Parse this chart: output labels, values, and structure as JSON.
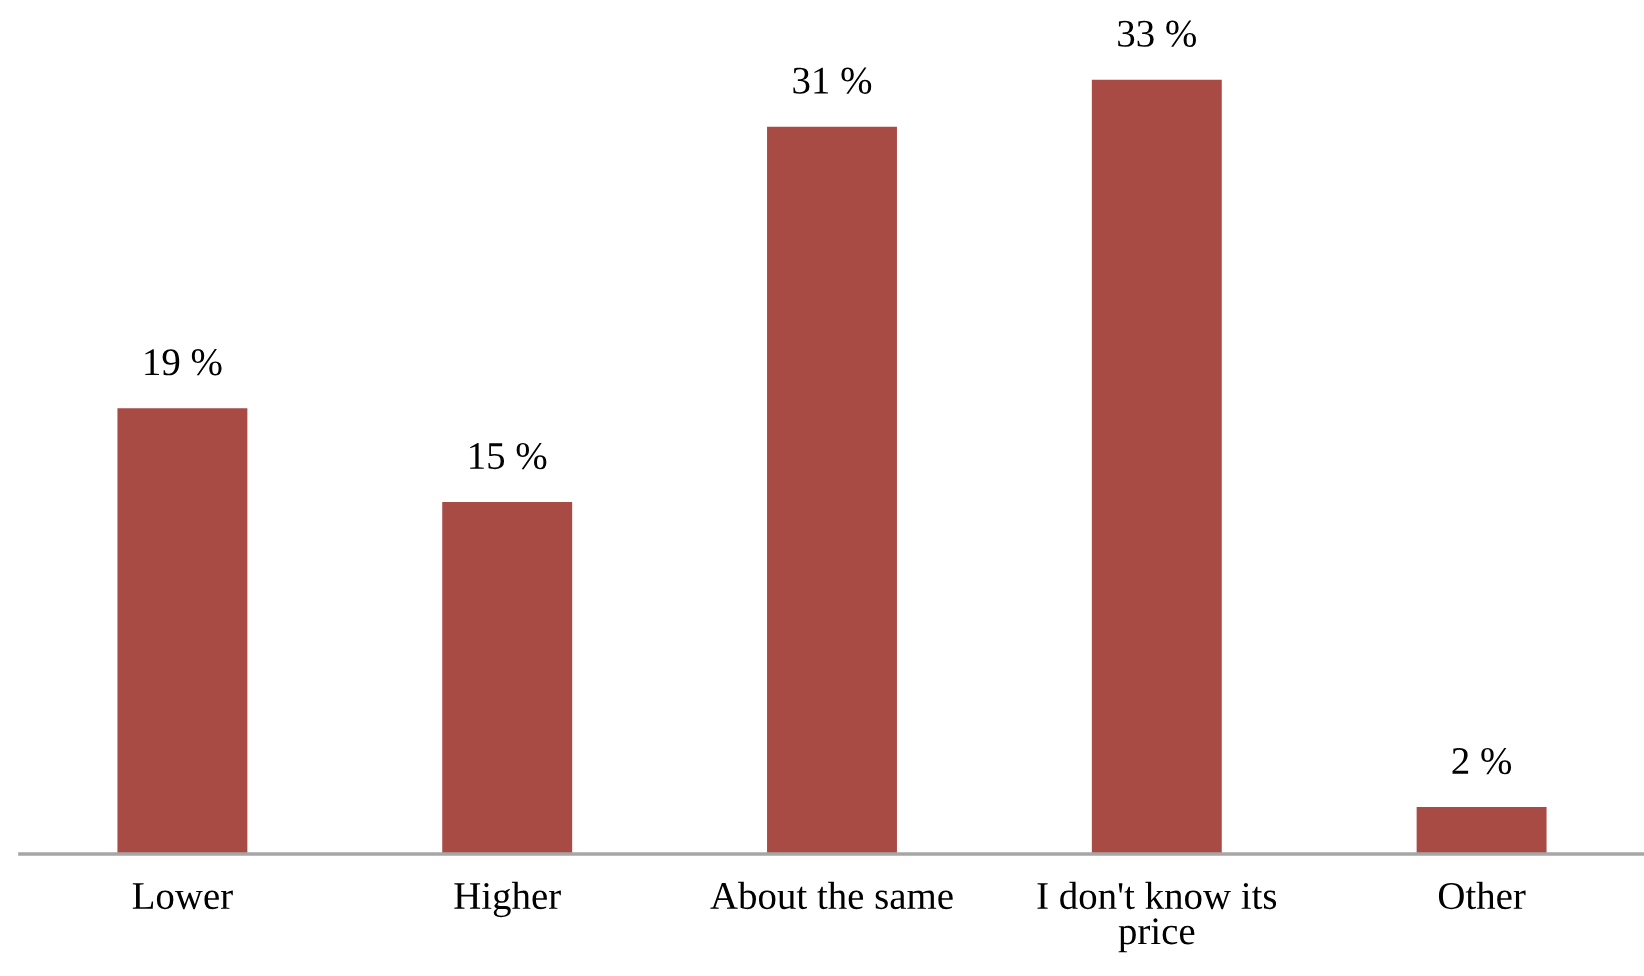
{
  "chart_data": {
    "type": "bar",
    "categories": [
      "Lower",
      "Higher",
      "About the same",
      "I don't know its price",
      "Other"
    ],
    "values": [
      19,
      15,
      31,
      33,
      2
    ],
    "value_labels": [
      "19 %",
      "15 %",
      "31 %",
      "33 %",
      "2 %"
    ],
    "color": "#a84b45",
    "tick_labels": "x",
    "grid": false,
    "legend": false
  }
}
